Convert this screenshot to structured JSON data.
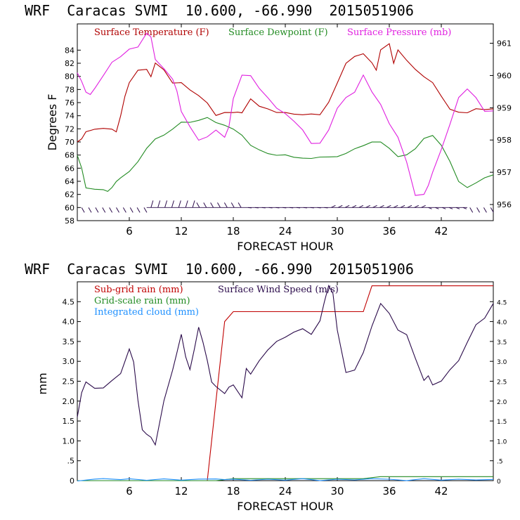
{
  "colors": {
    "temperature": "#b00000",
    "dewpoint": "#228b22",
    "pressure": "#e020e0",
    "wind": "#2a0a4a",
    "subgrid": "#c00000",
    "gridscale": "#228b22",
    "cloud": "#1e90ff",
    "axis": "#000000"
  },
  "chart_data": [
    {
      "type": "line",
      "title": "WRF  Caracas SVMI  10.600, -66.990  2015051906",
      "xlabel": "FORECAST HOUR",
      "ylabel": "Degrees F",
      "xlim": [
        0,
        48
      ],
      "ylim": [
        58,
        88
      ],
      "y2lim": [
        955.5,
        961.6
      ],
      "x_ticks": [
        "6",
        "12",
        "18",
        "24",
        "30",
        "36",
        "42"
      ],
      "y_ticks": [
        "58",
        "60",
        "62",
        "64",
        "66",
        "68",
        "70",
        "72",
        "74",
        "76",
        "78",
        "80",
        "82",
        "84"
      ],
      "y2_ticks": [
        "956",
        "957",
        "958",
        "959",
        "960",
        "961"
      ],
      "legend": [
        "Surface Temperature (F)",
        "Surface Dewpoint (F)",
        "Surface Pressure (mb)"
      ],
      "series": [
        {
          "name": "Surface Temperature (F)",
          "axis": "left",
          "x": [
            0,
            0.5,
            1,
            2,
            3,
            4,
            4.5,
            5,
            5.5,
            6,
            7,
            8,
            8.5,
            9,
            10,
            11,
            12,
            13,
            14,
            15,
            16,
            17,
            18,
            18.5,
            19,
            20,
            21,
            22,
            23,
            24,
            25,
            26,
            27,
            28,
            29,
            30,
            31,
            32,
            33,
            34,
            34.5,
            35,
            36,
            36.5,
            37,
            38,
            39,
            40,
            41,
            42,
            43,
            44,
            45,
            46,
            47,
            48
          ],
          "values": [
            70,
            70.5,
            71.5,
            72,
            72,
            72,
            71.5,
            74,
            77,
            79,
            81,
            81,
            80,
            82,
            81,
            79,
            79,
            78,
            77,
            76,
            74,
            74.5,
            74.5,
            74.5,
            74.5,
            76.5,
            75.5,
            75,
            74.5,
            74.5,
            74.2,
            74.2,
            74.2,
            74.2,
            76,
            79,
            82,
            83,
            83.5,
            82,
            81,
            84,
            85,
            82,
            84,
            82.5,
            81,
            80,
            79,
            77,
            75,
            74.5,
            74.5,
            75,
            75,
            75
          ]
        },
        {
          "name": "Surface Dewpoint (F)",
          "axis": "left",
          "x": [
            0,
            0.5,
            1,
            2,
            3,
            3.5,
            4,
            4.5,
            5,
            6,
            7,
            8,
            9,
            10,
            11,
            12,
            13,
            14,
            15,
            16,
            17,
            18,
            19,
            20,
            21,
            22,
            23,
            24,
            25,
            26,
            27,
            28,
            29,
            30,
            31,
            32,
            33,
            34,
            35,
            36,
            37,
            38,
            39,
            40,
            41,
            42,
            43,
            44,
            45,
            46,
            47,
            48
          ],
          "values": [
            68,
            66,
            63,
            62.8,
            62.7,
            62.5,
            63,
            64,
            64.5,
            65.5,
            67,
            69,
            70.5,
            71,
            72,
            73,
            73,
            73.3,
            73.7,
            73,
            72.5,
            72,
            71,
            69.5,
            68.8,
            68.2,
            68,
            68,
            67.7,
            67.5,
            67.5,
            67.7,
            67.7,
            67.8,
            68.2,
            69,
            69.4,
            70,
            70,
            69,
            67.8,
            68,
            69,
            70.5,
            71,
            69.5,
            67,
            64,
            63,
            63.8,
            64.5,
            65
          ]
        },
        {
          "name": "Surface Pressure (mb)",
          "axis": "right",
          "x": [
            0,
            0.5,
            1,
            1.5,
            2,
            3,
            4,
            5,
            6,
            7,
            8,
            8.5,
            9,
            10,
            11,
            11.5,
            12,
            13,
            14,
            15,
            16,
            17,
            17.5,
            18,
            19,
            20,
            21,
            22,
            23,
            24,
            25,
            26,
            27,
            28,
            29,
            30,
            31,
            32,
            33,
            34,
            35,
            36,
            37,
            38,
            39,
            40,
            40.5,
            41,
            42,
            43,
            44,
            45,
            46,
            47,
            48
          ],
          "values": [
            960.1,
            959.8,
            959.5,
            959.4,
            959.6,
            960,
            960.4,
            960.6,
            960.8,
            960.9,
            961.3,
            961.2,
            960.5,
            960.2,
            959.9,
            959.5,
            958.9,
            958.4,
            958,
            958.1,
            958.3,
            958.1,
            958.4,
            959.3,
            960,
            960,
            959.6,
            959.3,
            959,
            958.8,
            958.6,
            958.3,
            957.9,
            957.9,
            958.3,
            959,
            959.3,
            959.5,
            960,
            959.5,
            959.1,
            958.5,
            958.1,
            957.3,
            956.3,
            956.3,
            956.6,
            957,
            957.7,
            958.5,
            959.3,
            959.6,
            959.3,
            958.9,
            958.9
          ]
        }
      ],
      "wind_barbs": "Surface wind barbs drawn along the 60 level"
    },
    {
      "type": "line",
      "title": "WRF  Caracas SVMI  10.600, -66.990  2015051906",
      "xlabel": "FORECAST HOUR",
      "ylabel": "mm",
      "xlim": [
        0,
        48
      ],
      "ylim": [
        0,
        5
      ],
      "x_ticks": [
        "6",
        "12",
        "18",
        "24",
        "30",
        "36",
        "42"
      ],
      "y_ticks": [
        "0",
        ".5",
        "1.0",
        "1.5",
        "2.0",
        "2.5",
        "3.0",
        "3.5",
        "4.0",
        "4.5"
      ],
      "legend": [
        "Sub-grid rain (mm)",
        "Grid-scale rain (mm)",
        "Integrated cloud (mm)",
        "Surface Wind Speed (m/s)"
      ],
      "series": [
        {
          "name": "Sub-grid rain (mm)",
          "x": [
            0,
            15,
            16,
            17,
            18,
            33,
            34,
            48
          ],
          "values": [
            0,
            0,
            2.0,
            4.0,
            4.25,
            4.25,
            4.9,
            4.9
          ]
        },
        {
          "name": "Grid-scale rain (mm)",
          "x": [
            0,
            16,
            18,
            33,
            35,
            48
          ],
          "values": [
            0,
            0,
            0.05,
            0.05,
            0.1,
            0.1
          ]
        },
        {
          "name": "Integrated cloud (mm)",
          "x": [
            0,
            2,
            3,
            5,
            6,
            8,
            10,
            12,
            14,
            16,
            17,
            18,
            20,
            22,
            24,
            26,
            28,
            30,
            32,
            34,
            36,
            38,
            40,
            42,
            44,
            46,
            48
          ],
          "values": [
            0,
            0.03,
            0.06,
            0.02,
            0.05,
            0.01,
            0.04,
            0.02,
            0.03,
            0.05,
            0.02,
            0.04,
            0.01,
            0.03,
            0.02,
            0.04,
            0.01,
            0.03,
            0.02,
            0.05,
            0.03,
            0.01,
            0.04,
            0.02,
            0.03,
            0.02,
            0.03
          ]
        },
        {
          "name": "Surface Wind Speed (m/s)",
          "x": [
            0,
            0.5,
            1,
            2,
            3,
            4,
            5,
            5.5,
            6,
            6.5,
            7,
            7.5,
            8,
            8.5,
            9,
            10,
            11,
            11.5,
            12,
            12.5,
            13,
            13.5,
            14,
            14.5,
            15,
            15.5,
            16,
            17,
            17.5,
            18,
            19,
            19.5,
            20,
            21,
            22,
            23,
            24,
            25,
            26,
            27,
            28,
            28.5,
            29,
            29.5,
            30,
            31,
            32,
            33,
            34,
            35,
            36,
            37,
            38,
            39,
            40,
            40.5,
            41,
            42,
            43,
            44,
            45,
            46,
            47,
            48
          ],
          "values": [
            1.6,
            2.2,
            2.5,
            2.3,
            2.35,
            2.5,
            2.7,
            3.0,
            3.3,
            3.0,
            2.0,
            1.3,
            1.15,
            1.1,
            0.9,
            2.0,
            2.8,
            3.2,
            3.7,
            3.1,
            2.8,
            3.3,
            3.85,
            3.5,
            3.0,
            2.5,
            2.35,
            2.2,
            2.35,
            2.4,
            2.1,
            2.8,
            2.7,
            3.0,
            3.3,
            3.5,
            3.6,
            3.75,
            3.8,
            3.7,
            4.0,
            4.5,
            4.9,
            4.7,
            3.8,
            2.7,
            2.8,
            3.2,
            3.9,
            4.45,
            4.2,
            3.8,
            3.65,
            3.1,
            2.5,
            2.65,
            2.4,
            2.5,
            2.8,
            3.0,
            3.5,
            3.9,
            4.1,
            4.45
          ]
        }
      ]
    }
  ]
}
